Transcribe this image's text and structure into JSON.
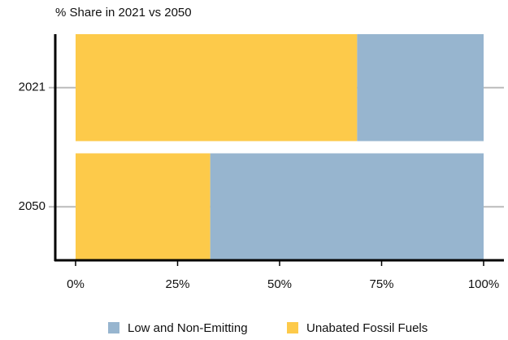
{
  "chart_data": {
    "type": "stacked-barh",
    "title": "% Share in 2021 vs 2050",
    "categories": [
      "2021",
      "2050"
    ],
    "series": [
      {
        "name": "Low and Non-Emitting",
        "color": "#97b5cf",
        "values": [
          31,
          67
        ]
      },
      {
        "name": "Unabated Fossil Fuels",
        "color": "#fdca4a",
        "values": [
          69,
          33
        ]
      }
    ],
    "xlim": [
      0,
      100
    ],
    "xticks": [
      {
        "value": 0,
        "label": "0%"
      },
      {
        "value": 25,
        "label": "25%"
      },
      {
        "value": 50,
        "label": "50%"
      },
      {
        "value": 75,
        "label": "75%"
      },
      {
        "value": 100,
        "label": "100%"
      }
    ],
    "legend": "bottom"
  }
}
